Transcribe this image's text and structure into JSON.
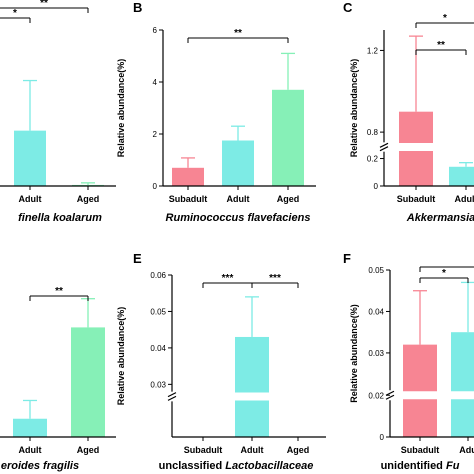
{
  "colors": {
    "Subadult": "#f78593",
    "Adult": "#7debe5",
    "Aged": "#86f0b7",
    "axis": "#000000"
  },
  "chart_data": [
    {
      "panel": "",
      "type": "bar",
      "categories": [
        "",
        "Adult",
        "Aged"
      ],
      "values": [
        null,
        1.05,
        0.02
      ],
      "errors": [
        null,
        0.95,
        0.04
      ],
      "ylim": [
        0,
        3.3
      ],
      "yticks": [],
      "ylabel": "",
      "title_plain": "",
      "title_italic": "finella koalarum",
      "signif": [
        {
          "from": -1,
          "to": 2,
          "text": "**",
          "level": 1
        },
        {
          "from": -1,
          "to": 1,
          "text": "*",
          "level": 0
        }
      ]
    },
    {
      "panel": "B",
      "type": "bar",
      "categories": [
        "Subadult",
        "Adult",
        "Aged"
      ],
      "values": [
        0.7,
        1.75,
        3.7
      ],
      "errors": [
        0.38,
        0.55,
        1.4
      ],
      "ylim": [
        0,
        6
      ],
      "yticks": [
        0,
        2,
        4,
        6
      ],
      "ylabel": "Relative abundance(%)",
      "title_plain": "",
      "title_italic": "Ruminococcus flavefaciens",
      "signif": [
        {
          "from": 0,
          "to": 2,
          "text": "**",
          "level": 0
        }
      ]
    },
    {
      "panel": "C",
      "type": "bar",
      "categories": [
        "Subadult",
        "Adult",
        ""
      ],
      "values": [
        0.9,
        0.14,
        null
      ],
      "errors": [
        0.37,
        0.03,
        null
      ],
      "ylim": [
        0,
        1.3
      ],
      "yticks": [
        0,
        0.2,
        0.8,
        1.2
      ],
      "axis_break": [
        0.25,
        0.75
      ],
      "ylabel": "Relative abundance(%)",
      "title_plain": "",
      "title_italic": "Akkermansia",
      "signif": [
        {
          "from": 0,
          "to": 1,
          "text": "**",
          "level": 0
        },
        {
          "from": 0,
          "to": 2,
          "text": "*",
          "level": 1
        }
      ]
    },
    {
      "panel": "",
      "type": "bar",
      "categories": [
        "",
        "Adult",
        "Aged"
      ],
      "values": [
        null,
        0.35,
        2.1
      ],
      "errors": [
        null,
        0.35,
        0.55
      ],
      "ylim": [
        0,
        3.2
      ],
      "yticks": [],
      "ylabel": "",
      "title_plain": "",
      "title_italic": "eroides fragilis",
      "signif": [
        {
          "from": 1,
          "to": 2,
          "text": "**",
          "level": 0
        }
      ]
    },
    {
      "panel": "E",
      "type": "bar",
      "categories": [
        "Subadult",
        "Adult",
        "Aged"
      ],
      "values": [
        0,
        0.043,
        0
      ],
      "errors": [
        0,
        0.011,
        0
      ],
      "ylim": [
        0,
        0.06
      ],
      "yticks": [
        0.03,
        0.04,
        0.05,
        0.06
      ],
      "axis_break": [
        0.0005,
        0.028
      ],
      "ylabel": "Relative abundance(%)",
      "title_plain": "unclassified ",
      "title_italic": "Lactobacillaceae",
      "signif": [
        {
          "from": 0,
          "to": 1,
          "text": "***",
          "level": 0
        },
        {
          "from": 1,
          "to": 2,
          "text": "***",
          "level": 0
        }
      ]
    },
    {
      "panel": "F",
      "type": "bar",
      "categories": [
        "Subadult",
        "Adu",
        ""
      ],
      "values": [
        0.032,
        0.035,
        null
      ],
      "errors": [
        0.013,
        0.012,
        null
      ],
      "ylim": [
        0,
        0.05
      ],
      "yticks": [
        0,
        0.02,
        0.03,
        0.04,
        0.05
      ],
      "axis_break": [
        0.0005,
        0.021
      ],
      "ylabel": "Relative abundance(%)",
      "title_plain": "unidentified ",
      "title_italic": "Fu",
      "signif": [
        {
          "from": 0,
          "to": 1,
          "text": "*",
          "level": 0
        },
        {
          "from": 0,
          "to": 2,
          "text": "",
          "level": 1
        }
      ]
    }
  ]
}
